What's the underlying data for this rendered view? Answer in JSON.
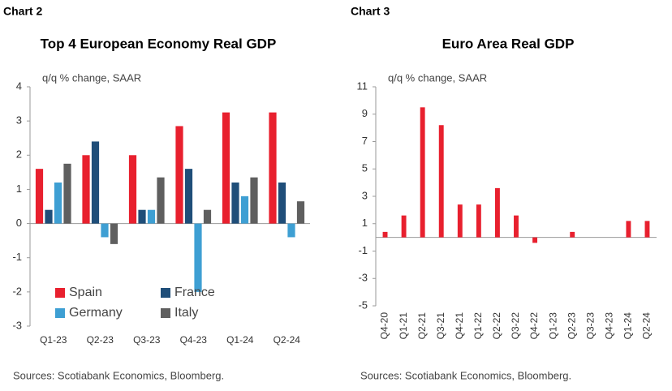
{
  "chart_data": [
    {
      "type": "bar",
      "label": "Chart 2",
      "title": "Top 4 European Economy Real GDP",
      "subtitle": "q/q % change, SAAR",
      "source": "Sources: Scotiabank Economics, Bloomberg.",
      "categories": [
        "Q1-23",
        "Q2-23",
        "Q3-23",
        "Q4-23",
        "Q1-24",
        "Q2-24"
      ],
      "series": [
        {
          "name": "Spain",
          "color": "#e8202e",
          "values": [
            1.6,
            2.0,
            2.0,
            2.85,
            3.25,
            3.25
          ]
        },
        {
          "name": "France",
          "color": "#1f4e79",
          "values": [
            0.4,
            2.4,
            0.4,
            1.6,
            1.2,
            1.2
          ]
        },
        {
          "name": "Germany",
          "color": "#3e9fd3",
          "values": [
            1.2,
            -0.4,
            0.4,
            -2.0,
            0.8,
            -0.4
          ]
        },
        {
          "name": "Italy",
          "color": "#5f5f5f",
          "values": [
            1.75,
            -0.6,
            1.35,
            0.4,
            1.35,
            0.65
          ]
        }
      ],
      "ylim": [
        -3,
        4
      ],
      "yticks": [
        -3,
        -2,
        -1,
        0,
        1,
        2,
        3,
        4
      ],
      "grid": false,
      "legend": "lower left"
    },
    {
      "type": "bar",
      "label": "Chart 3",
      "title": "Euro Area Real GDP",
      "subtitle": "q/q % change, SAAR",
      "source": "Sources: Scotiabank Economics, Bloomberg.",
      "categories": [
        "Q4-20",
        "Q1-21",
        "Q2-21",
        "Q3-21",
        "Q4-21",
        "Q1-22",
        "Q2-22",
        "Q3-22",
        "Q4-22",
        "Q1-23",
        "Q2-23",
        "Q3-23",
        "Q4-23",
        "Q1-24",
        "Q2-24"
      ],
      "series": [
        {
          "name": null,
          "color": "#e8202e",
          "values": [
            0.4,
            1.6,
            9.5,
            8.2,
            2.4,
            2.4,
            3.6,
            1.6,
            -0.4,
            0,
            0.4,
            0,
            0,
            1.2,
            1.2
          ]
        }
      ],
      "ylim": [
        -5,
        11
      ],
      "yticks": [
        -5,
        -3,
        -1,
        1,
        3,
        5,
        7,
        9,
        11
      ],
      "grid": false,
      "rotate_labels": true
    }
  ]
}
